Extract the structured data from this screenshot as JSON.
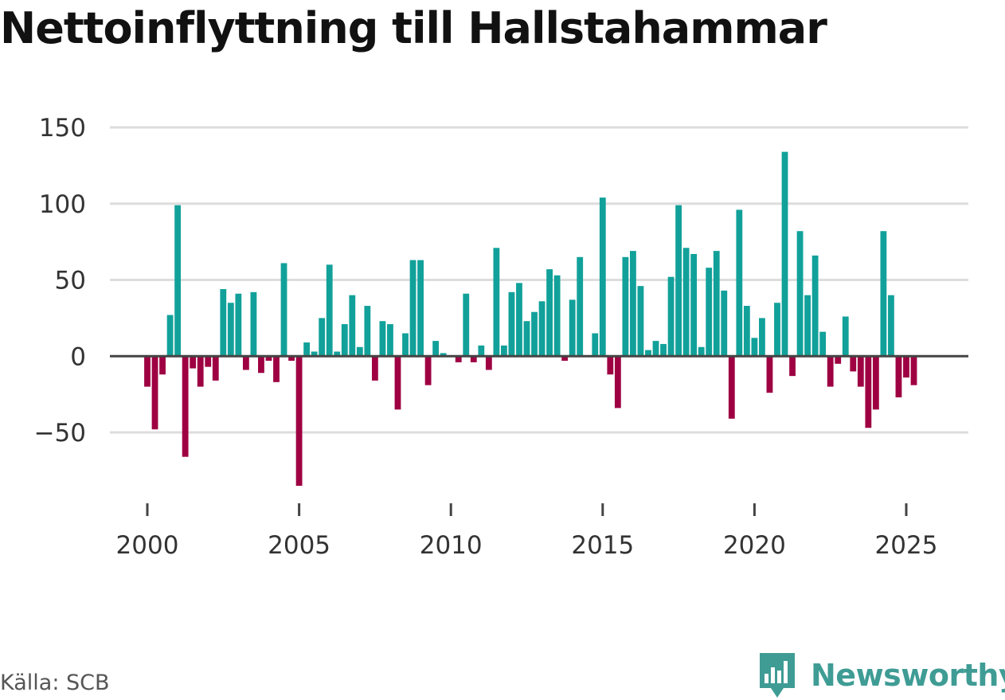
{
  "chart_data": {
    "type": "bar",
    "title": "Nettoinflyttning till Hallstahammar",
    "xlabel": "",
    "ylabel": "",
    "ylim": [
      -95,
      150
    ],
    "xlim": [
      1997.5,
      2028.0
    ],
    "grid": true,
    "y_ticks": [
      {
        "value": 150,
        "label": "150"
      },
      {
        "value": 100,
        "label": "100"
      },
      {
        "value": 50,
        "label": "50"
      },
      {
        "value": 0,
        "label": "0"
      },
      {
        "value": -50,
        "label": "−50"
      }
    ],
    "x_ticks": [
      {
        "value": 2000,
        "label": "2000"
      },
      {
        "value": 2005,
        "label": "2005"
      },
      {
        "value": 2010,
        "label": "2010"
      },
      {
        "value": 2015,
        "label": "2015"
      },
      {
        "value": 2020,
        "label": "2020"
      },
      {
        "value": 2025,
        "label": "2025"
      }
    ],
    "positive_color": "#11a19a",
    "negative_color": "#9e0042",
    "start_year": 2000,
    "period": "quarter",
    "values": [
      -20,
      -48,
      -12,
      27,
      99,
      -66,
      -8,
      -20,
      -7,
      -16,
      44,
      35,
      41,
      -9,
      42,
      -11,
      -3,
      -17,
      61,
      -3,
      -85,
      9,
      3,
      25,
      60,
      3,
      21,
      40,
      6,
      33,
      -16,
      23,
      21,
      -35,
      15,
      63,
      63,
      -19,
      10,
      2,
      0,
      -4,
      41,
      -4,
      7,
      -9,
      71,
      7,
      42,
      48,
      23,
      29,
      36,
      57,
      53,
      -3,
      37,
      65,
      0,
      15,
      104,
      -12,
      -34,
      65,
      69,
      46,
      4,
      10,
      8,
      52,
      99,
      71,
      67,
      6,
      58,
      69,
      43,
      -41,
      96,
      33,
      12,
      25,
      -24,
      35,
      134,
      -13,
      82,
      40,
      66,
      16,
      -20,
      -5,
      26,
      -10,
      -20,
      -47,
      -35,
      82,
      40,
      -27,
      -14,
      -19
    ]
  },
  "source": {
    "text": "Källa: SCB"
  },
  "brand": {
    "name": "Newsworthy",
    "color": "#3f9c95"
  }
}
